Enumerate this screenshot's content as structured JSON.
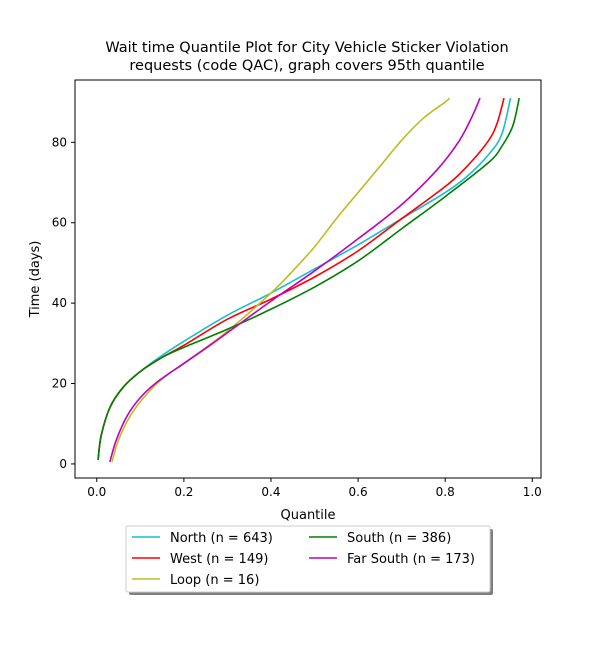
{
  "chart_data": {
    "type": "line",
    "title_line1": "Wait time Quantile Plot for City Vehicle Sticker Violation",
    "title_line2": "requests (code QAC), graph covers 95th quantile",
    "xlabel": "Quantile",
    "ylabel": "Time (days)",
    "xlim": [
      -0.05,
      1.02
    ],
    "ylim": [
      -3.5,
      95.5
    ],
    "xticks": [
      0.0,
      0.2,
      0.4,
      0.6,
      0.8,
      1.0
    ],
    "xtick_labels": [
      "0.0",
      "0.2",
      "0.4",
      "0.6",
      "0.8",
      "1.0"
    ],
    "yticks": [
      0,
      20,
      40,
      60,
      80
    ],
    "ytick_labels": [
      "0",
      "20",
      "40",
      "60",
      "80"
    ],
    "grid": false,
    "legend_position": "below",
    "series": [
      {
        "name": "North (n = 643)",
        "color": "#17becf",
        "x": [
          0.003,
          0.01,
          0.03,
          0.06,
          0.1,
          0.15,
          0.2,
          0.3,
          0.4,
          0.5,
          0.6,
          0.7,
          0.8,
          0.85,
          0.9,
          0.93,
          0.95
        ],
        "y": [
          1,
          7,
          14,
          19,
          23,
          27,
          30.5,
          37,
          42.5,
          48.5,
          54.5,
          61,
          67.5,
          71.5,
          77,
          82,
          91
        ]
      },
      {
        "name": "West (n = 149)",
        "color": "#ff0000",
        "x": [
          0.003,
          0.01,
          0.03,
          0.06,
          0.1,
          0.15,
          0.2,
          0.3,
          0.4,
          0.5,
          0.6,
          0.7,
          0.8,
          0.85,
          0.9,
          0.92,
          0.935
        ],
        "y": [
          1,
          7,
          14,
          19,
          23,
          26.5,
          29.5,
          36,
          41,
          46.5,
          53,
          61,
          69,
          74,
          80.5,
          85,
          91
        ]
      },
      {
        "name": "Loop (n = 16)",
        "color": "#bcbd22",
        "x": [
          0.035,
          0.05,
          0.08,
          0.12,
          0.16,
          0.2,
          0.3,
          0.4,
          0.45,
          0.5,
          0.55,
          0.6,
          0.65,
          0.7,
          0.75,
          0.8,
          0.81
        ],
        "y": [
          0.5,
          6,
          12.5,
          18,
          22,
          25,
          33,
          42.5,
          48,
          54,
          61,
          67.5,
          74,
          80.5,
          86,
          90,
          91
        ]
      },
      {
        "name": "South (n = 386)",
        "color": "#008000",
        "x": [
          0.003,
          0.01,
          0.03,
          0.06,
          0.1,
          0.15,
          0.2,
          0.3,
          0.4,
          0.5,
          0.6,
          0.7,
          0.8,
          0.9,
          0.93,
          0.955,
          0.97
        ],
        "y": [
          1,
          7,
          14,
          19,
          23,
          26.5,
          29,
          33.5,
          38.5,
          44,
          50.5,
          58.5,
          66.5,
          75,
          79,
          84,
          91
        ]
      },
      {
        "name": "Far South (n = 173)",
        "color": "#bf00bf",
        "x": [
          0.03,
          0.045,
          0.07,
          0.1,
          0.14,
          0.2,
          0.26,
          0.33,
          0.4,
          0.5,
          0.6,
          0.7,
          0.78,
          0.83,
          0.86,
          0.88
        ],
        "y": [
          0.5,
          6,
          12,
          16.5,
          20.5,
          25,
          29.5,
          35,
          40.5,
          48,
          56,
          64.5,
          73,
          80,
          86,
          91
        ]
      }
    ]
  }
}
